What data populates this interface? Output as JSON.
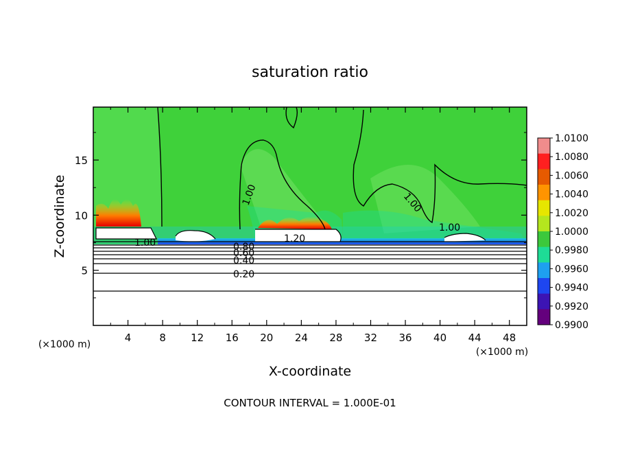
{
  "chart_data": {
    "type": "heatmap",
    "title": "saturation ratio",
    "xlabel": "X-coordinate",
    "ylabel": "Z-coordinate",
    "x_unit": "(×1000 m)",
    "y_unit": "(×1000 m)",
    "footer": "CONTOUR INTERVAL = 1.000E-01",
    "xlim": [
      0,
      50
    ],
    "ylim": [
      0,
      19.8
    ],
    "x_ticks": [
      "4",
      "8",
      "12",
      "16",
      "20",
      "24",
      "28",
      "32",
      "36",
      "40",
      "44",
      "48"
    ],
    "y_ticks": [
      "5",
      "10",
      "15"
    ],
    "colorbar": {
      "labels": [
        "1.0100",
        "1.0080",
        "1.0060",
        "1.0040",
        "1.0020",
        "1.0000",
        "0.9980",
        "0.9960",
        "0.9940",
        "0.9920",
        "0.9900"
      ],
      "colors": [
        "#f08c8c",
        "#ff2020",
        "#e65a00",
        "#ff9400",
        "#e6e600",
        "#b4e61e",
        "#3cc83c",
        "#1edc96",
        "#1ea0f0",
        "#1e46f0",
        "#3c14b4",
        "#64007d"
      ]
    },
    "contour_labels": [
      "1.00",
      "1.00",
      "1.00",
      "1.00",
      "1.20",
      "0.80",
      "0.60",
      "0.40",
      "0.20"
    ],
    "colors": {
      "field": "#3fd13a",
      "field_light": "#5ee05a",
      "saturated": "#ff5a14",
      "subsaturated": "#1ec8dc",
      "contour": "#000000"
    }
  }
}
